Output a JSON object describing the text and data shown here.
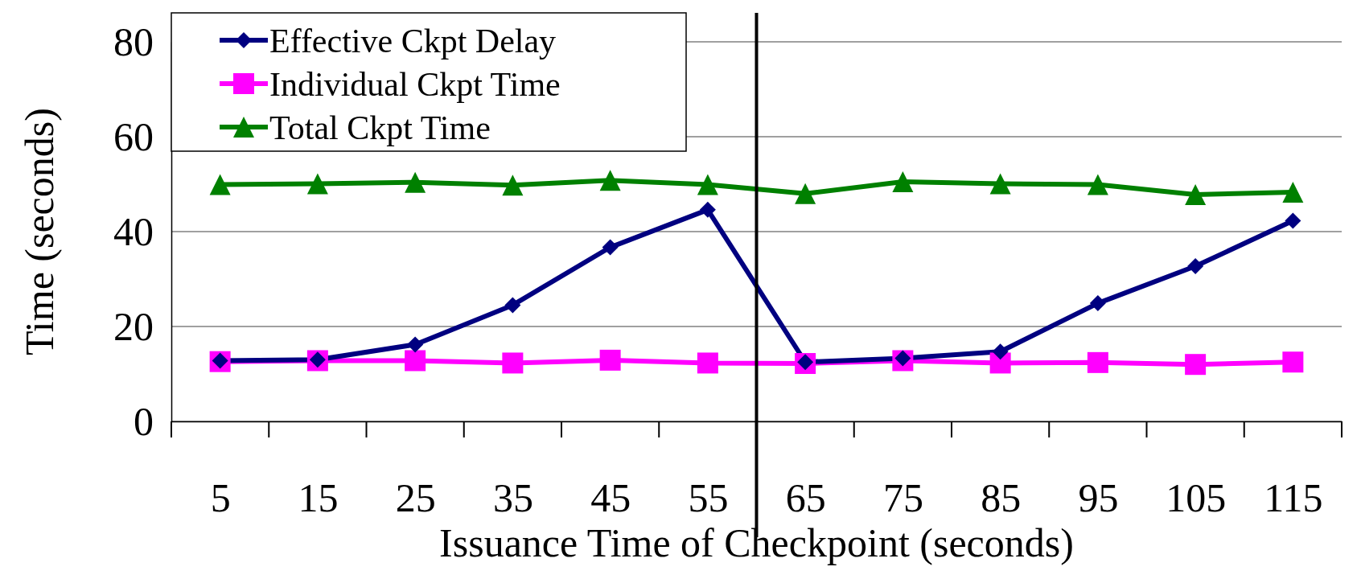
{
  "chart_data": {
    "type": "line",
    "xlabel": "Issuance Time of Checkpoint (seconds)",
    "ylabel": "Time (seconds)",
    "x": [
      5,
      15,
      25,
      35,
      45,
      55,
      65,
      75,
      85,
      95,
      105,
      115
    ],
    "xlim": [
      0,
      120
    ],
    "xticks": [
      5,
      15,
      25,
      35,
      45,
      55,
      65,
      75,
      85,
      95,
      105,
      115
    ],
    "ylim": [
      0,
      80
    ],
    "yticks": [
      0,
      20,
      40,
      60,
      80
    ],
    "grid": "y",
    "legend": "top left",
    "line_style": "solid",
    "ref_lines": [
      {
        "axis": "x",
        "value": 60,
        "color": "#000000"
      }
    ],
    "series": [
      {
        "name": "Effective Ckpt Delay",
        "color": "#000080",
        "marker": "diamond",
        "values": [
          12.8,
          13.0,
          16.2,
          24.5,
          36.7,
          44.6,
          12.5,
          13.3,
          14.7,
          24.9,
          32.7,
          42.3
        ]
      },
      {
        "name": "Individual Ckpt Time",
        "color": "#ff00ff",
        "marker": "square",
        "values": [
          12.6,
          12.8,
          12.8,
          12.3,
          12.9,
          12.3,
          12.2,
          12.8,
          12.3,
          12.4,
          12.0,
          12.5
        ]
      },
      {
        "name": "Total Ckpt Time",
        "color": "#008000",
        "marker": "triangle",
        "values": [
          49.9,
          50.1,
          50.4,
          49.8,
          50.8,
          49.9,
          48.0,
          50.5,
          50.1,
          49.9,
          47.8,
          48.3
        ]
      }
    ]
  }
}
